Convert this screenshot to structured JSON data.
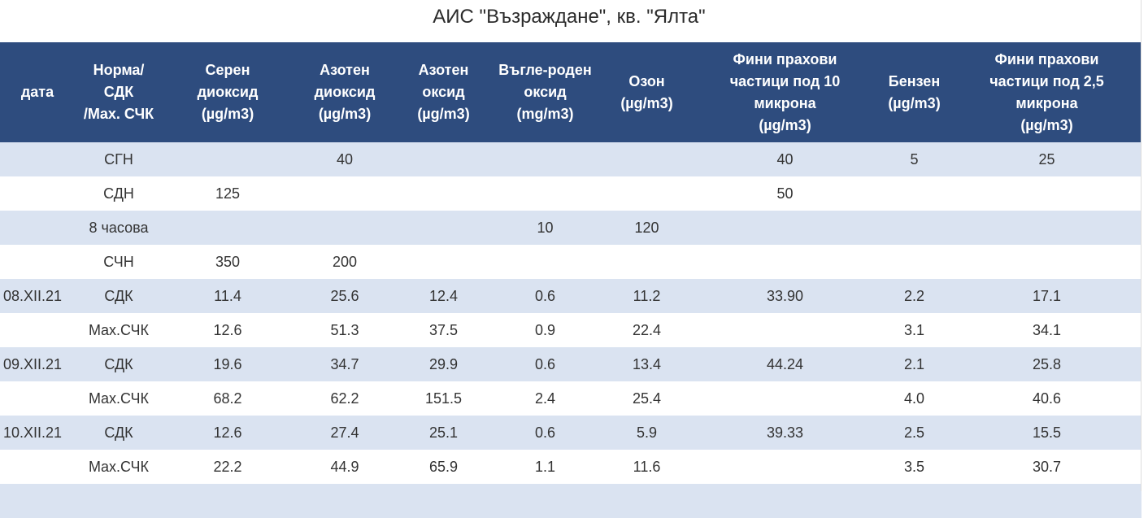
{
  "page": {
    "title": "АИС \"Възраждане\", кв. \"Ялта\""
  },
  "table": {
    "headers": [
      "дата",
      "Норма/\nСДК\n/Max. СЧК",
      "Серен\nдиоксид\n(µg/m3)",
      "Азотен\nдиоксид\n(µg/m3)",
      "Азотен\nоксид\n(µg/m3)",
      "Въгле-роден\nоксид\n(mg/m3)",
      "Озон\n(µg/m3)",
      "Фини прахови\nчастици под 10\nмикрона\n(µg/m3)",
      "Бензен\n(µg/m3)",
      "Фини прахови\nчастици под 2,5\nмикрона\n(µg/m3)"
    ],
    "rows": [
      [
        "",
        "СГН",
        "",
        "40",
        "",
        "",
        "",
        "40",
        "5",
        "25"
      ],
      [
        "",
        "СДН",
        "125",
        "",
        "",
        "",
        "",
        "50",
        "",
        ""
      ],
      [
        "",
        "8 часова",
        "",
        "",
        "",
        "10",
        "120",
        "",
        "",
        ""
      ],
      [
        "",
        "СЧН",
        "350",
        "200",
        "",
        "",
        "",
        "",
        "",
        ""
      ],
      [
        "08.XII.21",
        "СДК",
        "11.4",
        "25.6",
        "12.4",
        "0.6",
        "11.2",
        "33.90",
        "2.2",
        "17.1"
      ],
      [
        "",
        "Max.СЧК",
        "12.6",
        "51.3",
        "37.5",
        "0.9",
        "22.4",
        "",
        "3.1",
        "34.1"
      ],
      [
        "09.XII.21",
        "СДК",
        "19.6",
        "34.7",
        "29.9",
        "0.6",
        "13.4",
        "44.24",
        "2.1",
        "25.8"
      ],
      [
        "",
        "Max.СЧК",
        "68.2",
        "62.2",
        "151.5",
        "2.4",
        "25.4",
        "",
        "4.0",
        "40.6"
      ],
      [
        "10.XII.21",
        "СДК",
        "12.6",
        "27.4",
        "25.1",
        "0.6",
        "5.9",
        "39.33",
        "2.5",
        "15.5"
      ],
      [
        "",
        "Max.СЧК",
        "22.2",
        "44.9",
        "65.9",
        "1.1",
        "11.6",
        "",
        "3.5",
        "30.7"
      ],
      [
        "",
        "",
        "",
        "",
        "",
        "",
        "",
        "",
        "",
        ""
      ]
    ]
  },
  "colors": {
    "header_bg": "#2e4c7e",
    "header_text": "#ffffff",
    "row_shade": "#dae3f1",
    "row_plain": "#ffffff"
  }
}
